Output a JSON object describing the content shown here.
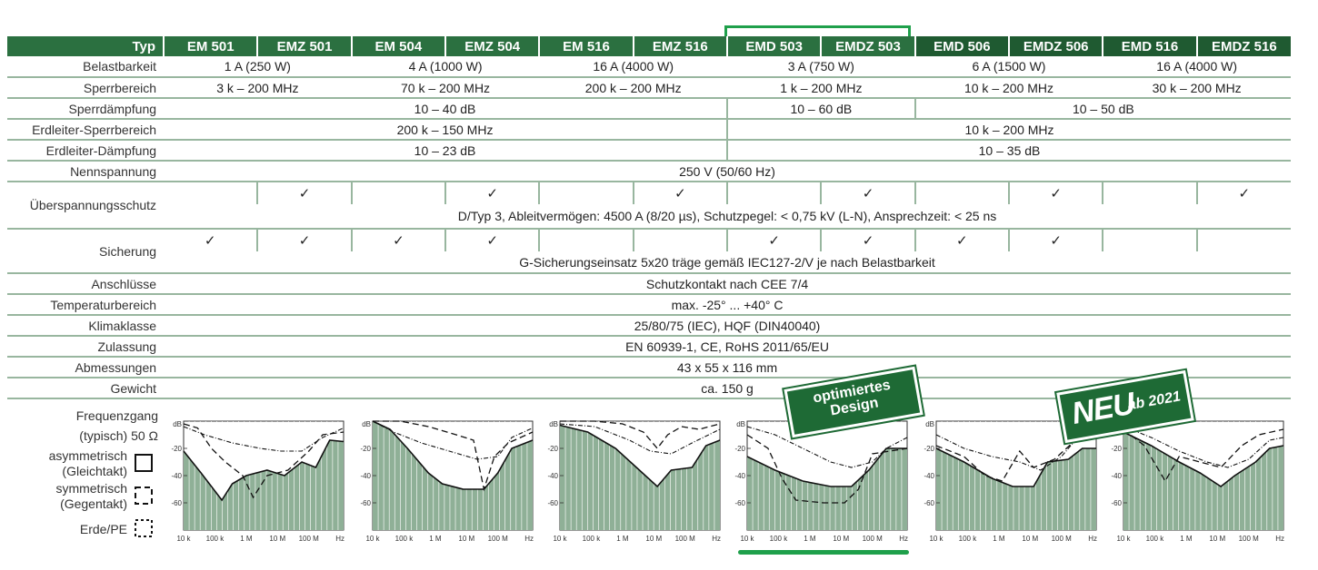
{
  "header": {
    "typ_label": "Typ",
    "models": [
      "EM 501",
      "EMZ 501",
      "EM 504",
      "EMZ 504",
      "EM 516",
      "EMZ 516",
      "EMD 503",
      "EMDZ 503",
      "EMD 506",
      "EMDZ 506",
      "EMD 516",
      "EMDZ 516"
    ]
  },
  "rows": {
    "belastbarkeit": {
      "label": "Belastbarkeit",
      "values": [
        "1 A (250 W)",
        "4 A (1000 W)",
        "16 A (4000 W)",
        "3 A (750 W)",
        "6 A (1500 W)",
        "16 A (4000 W)"
      ]
    },
    "sperrbereich": {
      "label": "Sperrbereich",
      "values": [
        "3 k – 200 MHz",
        "70 k – 200 MHz",
        "200 k – 200 MHz",
        "1 k – 200 MHz",
        "10 k – 200 MHz",
        "30 k – 200 MHz"
      ]
    },
    "sperrdaempfung": {
      "label": "Sperrdämpfung",
      "values": [
        "10 – 40 dB",
        "10 – 60 dB",
        "10 – 50 dB"
      ]
    },
    "erdleiter_sperrbereich": {
      "label": "Erdleiter-Sperrbereich",
      "values": [
        "200 k – 150 MHz",
        "10 k – 200 MHz"
      ]
    },
    "erdleiter_daempfung": {
      "label": "Erdleiter-Dämpfung",
      "values": [
        "10 – 23 dB",
        "10 – 35 dB"
      ]
    },
    "nennspannung": {
      "label": "Nennspannung",
      "value": "250 V (50/60 Hz)"
    },
    "ueberspannungsschutz": {
      "label": "Überspannungsschutz",
      "checks": [
        false,
        true,
        false,
        true,
        false,
        true,
        false,
        true,
        false,
        true,
        false,
        true
      ],
      "note": "D/Typ 3, Ableitvermögen: 4500 A (8/20 µs), Schutzpegel: < 0,75 kV (L-N), Ansprechzeit: < 25 ns"
    },
    "sicherung": {
      "label": "Sicherung",
      "checks": [
        true,
        true,
        true,
        true,
        false,
        false,
        true,
        true,
        true,
        true,
        false,
        false
      ],
      "note": "G-Sicherungseinsatz 5x20 träge gemäß IEC127-2/V je nach Belastbarkeit"
    },
    "anschluesse": {
      "label": "Anschlüsse",
      "value": "Schutzkontakt nach CEE 7/4"
    },
    "temperaturbereich": {
      "label": "Temperaturbereich",
      "value": "max. -25° ... +40° C"
    },
    "klimaklasse": {
      "label": "Klimaklasse",
      "value": "25/80/75 (IEC), HQF (DIN40040)"
    },
    "zulassung": {
      "label": "Zulassung",
      "value": "EN 60939-1, CE, RoHS 2011/65/EU"
    },
    "abmessungen": {
      "label": "Abmessungen",
      "value": "43 x 55 x 116 mm"
    },
    "gewicht": {
      "label": "Gewicht",
      "value": "ca. 150 g"
    }
  },
  "check_glyph": "✓",
  "legend": {
    "title1": "Frequenzgang",
    "title2": "(typisch) 50 Ω",
    "asym1": "asymmetrisch",
    "asym2": "(Gleichtakt)",
    "sym1": "symmetrisch",
    "sym2": "(Gegentakt)",
    "erde": "Erde/PE"
  },
  "badges": {
    "opt1": "optimiertes",
    "opt2": "Design",
    "neu": "NEU",
    "ab": "ab 2021"
  },
  "chart_data": [
    {
      "type": "line",
      "ylabel": "dB",
      "x_ticks": [
        "10 k",
        "100 k",
        "1 M",
        "10 M",
        "100 M",
        "Hz"
      ],
      "y_ticks": [
        -20,
        -40,
        -60
      ],
      "ylim": [
        -80,
        0
      ],
      "series": [
        {
          "values": [
            [
              1,
              -22
            ],
            [
              1.5,
              -38
            ],
            [
              2.1,
              -58
            ],
            [
              2.4,
              -46
            ],
            [
              2.8,
              -40
            ],
            [
              3.4,
              -36
            ],
            [
              3.9,
              -40
            ],
            [
              4.4,
              -30
            ],
            [
              4.8,
              -34
            ],
            [
              5.2,
              -14
            ],
            [
              5.6,
              -15
            ]
          ]
        },
        {
          "values": [
            [
              1,
              -2
            ],
            [
              1.4,
              -5
            ],
            [
              1.8,
              -20
            ],
            [
              2.2,
              -30
            ],
            [
              2.7,
              -40
            ],
            [
              3.0,
              -56
            ],
            [
              3.4,
              -40
            ],
            [
              4.0,
              -36
            ],
            [
              4.6,
              -22
            ],
            [
              5.0,
              -10
            ],
            [
              5.6,
              -8
            ]
          ]
        },
        {
          "values": [
            [
              1,
              -4
            ],
            [
              1.6,
              -10
            ],
            [
              2.4,
              -16
            ],
            [
              3.2,
              -20
            ],
            [
              3.8,
              -22
            ],
            [
              4.4,
              -22
            ],
            [
              5.0,
              -12
            ],
            [
              5.6,
              -5
            ]
          ]
        }
      ]
    },
    {
      "type": "line",
      "ylabel": "dB",
      "x_ticks": [
        "10 k",
        "100 k",
        "1 M",
        "10 M",
        "100 M",
        "Hz"
      ],
      "y_ticks": [
        -20,
        -40,
        -60
      ],
      "ylim": [
        -80,
        0
      ],
      "series": [
        {
          "values": [
            [
              1,
              0
            ],
            [
              1.5,
              -6
            ],
            [
              2.0,
              -20
            ],
            [
              2.6,
              -38
            ],
            [
              3.0,
              -46
            ],
            [
              3.6,
              -50
            ],
            [
              4.2,
              -50
            ],
            [
              4.6,
              -38
            ],
            [
              5.0,
              -20
            ],
            [
              5.6,
              -14
            ]
          ]
        },
        {
          "values": [
            [
              1,
              0
            ],
            [
              1.8,
              0
            ],
            [
              2.6,
              -4
            ],
            [
              3.4,
              -10
            ],
            [
              3.9,
              -14
            ],
            [
              4.2,
              -50
            ],
            [
              4.5,
              -26
            ],
            [
              4.9,
              -16
            ],
            [
              5.6,
              -8
            ]
          ]
        },
        {
          "values": [
            [
              1,
              0
            ],
            [
              1.6,
              -8
            ],
            [
              2.4,
              -16
            ],
            [
              3.2,
              -22
            ],
            [
              4.0,
              -28
            ],
            [
              4.6,
              -26
            ],
            [
              5.0,
              -12
            ],
            [
              5.6,
              -5
            ]
          ]
        }
      ]
    },
    {
      "type": "line",
      "ylabel": "dB",
      "x_ticks": [
        "10 k",
        "100 k",
        "1 M",
        "10 M",
        "100 M",
        "Hz"
      ],
      "y_ticks": [
        -20,
        -40,
        -60
      ],
      "ylim": [
        -80,
        0
      ],
      "series": [
        {
          "values": [
            [
              1,
              -3
            ],
            [
              1.8,
              -8
            ],
            [
              2.6,
              -20
            ],
            [
              3.2,
              -34
            ],
            [
              3.8,
              -48
            ],
            [
              4.2,
              -36
            ],
            [
              4.8,
              -34
            ],
            [
              5.2,
              -18
            ],
            [
              5.6,
              -14
            ]
          ]
        },
        {
          "values": [
            [
              1,
              0
            ],
            [
              2.0,
              0
            ],
            [
              2.8,
              -2
            ],
            [
              3.4,
              -8
            ],
            [
              3.8,
              -20
            ],
            [
              4.1,
              -10
            ],
            [
              4.5,
              -4
            ],
            [
              5.0,
              -6
            ],
            [
              5.6,
              -2
            ]
          ]
        },
        {
          "values": [
            [
              1,
              -2
            ],
            [
              2.0,
              -4
            ],
            [
              3.0,
              -14
            ],
            [
              3.6,
              -22
            ],
            [
              4.2,
              -24
            ],
            [
              4.8,
              -16
            ],
            [
              5.6,
              -6
            ]
          ]
        }
      ]
    },
    {
      "type": "line",
      "ylabel": "dB",
      "x_ticks": [
        "10 k",
        "100 k",
        "1 M",
        "10 M",
        "100 M",
        "Hz"
      ],
      "y_ticks": [
        -20,
        -40,
        -60
      ],
      "ylim": [
        -80,
        0
      ],
      "series": [
        {
          "values": [
            [
              1,
              -26
            ],
            [
              1.8,
              -36
            ],
            [
              2.6,
              -44
            ],
            [
              3.4,
              -48
            ],
            [
              4.0,
              -48
            ],
            [
              4.5,
              -36
            ],
            [
              5.0,
              -20
            ],
            [
              5.6,
              -20
            ]
          ]
        },
        {
          "values": [
            [
              1,
              -10
            ],
            [
              1.6,
              -20
            ],
            [
              2.0,
              -42
            ],
            [
              2.4,
              -58
            ],
            [
              3.2,
              -60
            ],
            [
              3.8,
              -60
            ],
            [
              4.2,
              -50
            ],
            [
              4.6,
              -24
            ],
            [
              5.6,
              -20
            ]
          ]
        },
        {
          "values": [
            [
              1,
              -4
            ],
            [
              1.8,
              -10
            ],
            [
              2.6,
              -20
            ],
            [
              3.4,
              -30
            ],
            [
              4.0,
              -34
            ],
            [
              4.6,
              -30
            ],
            [
              5.0,
              -20
            ],
            [
              5.6,
              -12
            ]
          ]
        }
      ]
    },
    {
      "type": "line",
      "ylabel": "dB",
      "x_ticks": [
        "10 k",
        "100 k",
        "1 M",
        "10 M",
        "100 M",
        "Hz"
      ],
      "y_ticks": [
        -20,
        -40,
        -60
      ],
      "ylim": [
        -80,
        0
      ],
      "series": [
        {
          "values": [
            [
              1,
              -20
            ],
            [
              1.8,
              -30
            ],
            [
              2.6,
              -42
            ],
            [
              3.2,
              -48
            ],
            [
              3.8,
              -48
            ],
            [
              4.2,
              -30
            ],
            [
              4.8,
              -28
            ],
            [
              5.2,
              -20
            ],
            [
              5.6,
              -20
            ]
          ]
        },
        {
          "values": [
            [
              1,
              -18
            ],
            [
              1.8,
              -26
            ],
            [
              2.4,
              -40
            ],
            [
              2.9,
              -44
            ],
            [
              3.4,
              -22
            ],
            [
              3.8,
              -34
            ],
            [
              4.4,
              -28
            ],
            [
              5.0,
              -14
            ],
            [
              5.6,
              -4
            ]
          ]
        },
        {
          "values": [
            [
              1,
              -10
            ],
            [
              1.8,
              -20
            ],
            [
              2.6,
              -26
            ],
            [
              3.4,
              -30
            ],
            [
              4.0,
              -36
            ],
            [
              4.6,
              -26
            ],
            [
              5.0,
              -14
            ],
            [
              5.6,
              -5
            ]
          ]
        }
      ]
    },
    {
      "type": "line",
      "ylabel": "dB",
      "x_ticks": [
        "10 k",
        "100 k",
        "1 M",
        "10 M",
        "100 M",
        "Hz"
      ],
      "y_ticks": [
        -20,
        -40,
        -60
      ],
      "ylim": [
        -80,
        0
      ],
      "series": [
        {
          "values": [
            [
              1,
              -8
            ],
            [
              1.8,
              -18
            ],
            [
              2.6,
              -30
            ],
            [
              3.2,
              -38
            ],
            [
              3.8,
              -48
            ],
            [
              4.2,
              -40
            ],
            [
              4.8,
              -30
            ],
            [
              5.2,
              -20
            ],
            [
              5.6,
              -18
            ]
          ]
        },
        {
          "values": [
            [
              1,
              -6
            ],
            [
              1.6,
              -18
            ],
            [
              2.2,
              -44
            ],
            [
              2.6,
              -26
            ],
            [
              3.2,
              -30
            ],
            [
              3.8,
              -34
            ],
            [
              4.4,
              -18
            ],
            [
              4.9,
              -10
            ],
            [
              5.6,
              -6
            ]
          ]
        },
        {
          "values": [
            [
              1,
              -4
            ],
            [
              1.8,
              -12
            ],
            [
              2.6,
              -22
            ],
            [
              3.4,
              -30
            ],
            [
              4.0,
              -34
            ],
            [
              4.6,
              -28
            ],
            [
              5.2,
              -14
            ],
            [
              5.6,
              -12
            ]
          ]
        }
      ]
    }
  ]
}
